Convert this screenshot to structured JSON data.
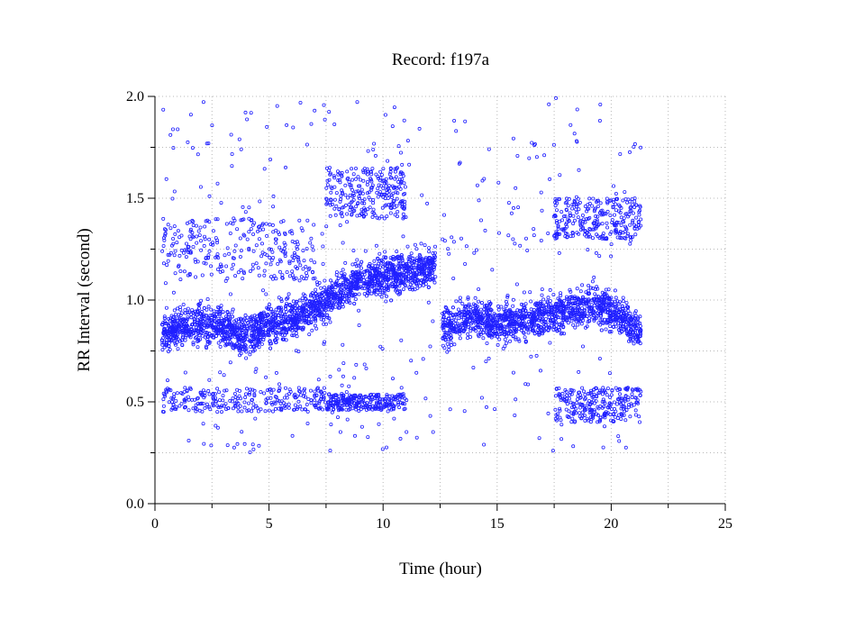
{
  "chart_data": {
    "type": "scatter",
    "title": "Record:  f197a",
    "xlabel": "Time (hour)",
    "ylabel": "RR Interval (second)",
    "xlim": [
      0,
      25
    ],
    "ylim": [
      0,
      2.0
    ],
    "x_ticks": [
      0,
      5,
      10,
      15,
      20,
      25
    ],
    "x_tick_labels": [
      "0",
      "5",
      "10",
      "15",
      "20",
      "25"
    ],
    "y_ticks": [
      0.0,
      0.5,
      1.0,
      1.5,
      2.0
    ],
    "y_tick_labels": [
      "0.0",
      "0.5",
      "1.0",
      "1.5",
      "2.0"
    ],
    "grid": true,
    "marker_color": "#2020ff",
    "marker": "open-circle",
    "data_extent_x": [
      0.3,
      21.3
    ],
    "series_trend": [
      {
        "x": 0.3,
        "y": 0.85
      },
      {
        "x": 1.0,
        "y": 0.86
      },
      {
        "x": 2.0,
        "y": 0.88
      },
      {
        "x": 3.0,
        "y": 0.87
      },
      {
        "x": 4.0,
        "y": 0.82
      },
      {
        "x": 5.0,
        "y": 0.88
      },
      {
        "x": 6.0,
        "y": 0.9
      },
      {
        "x": 7.0,
        "y": 0.96
      },
      {
        "x": 8.0,
        "y": 1.03
      },
      {
        "x": 9.0,
        "y": 1.1
      },
      {
        "x": 10.0,
        "y": 1.12
      },
      {
        "x": 11.0,
        "y": 1.14
      },
      {
        "x": 12.3,
        "y": 1.16
      },
      {
        "x": 12.6,
        "y": 0.86
      },
      {
        "x": 14.0,
        "y": 0.92
      },
      {
        "x": 15.0,
        "y": 0.88
      },
      {
        "x": 16.0,
        "y": 0.9
      },
      {
        "x": 17.0,
        "y": 0.92
      },
      {
        "x": 18.0,
        "y": 0.94
      },
      {
        "x": 19.0,
        "y": 0.98
      },
      {
        "x": 20.0,
        "y": 0.95
      },
      {
        "x": 21.3,
        "y": 0.85
      }
    ],
    "clusters": [
      {
        "x": [
          0.3,
          7.5
        ],
        "y": [
          0.45,
          0.57
        ]
      },
      {
        "x": [
          7.5,
          11.0
        ],
        "y": [
          0.46,
          0.54
        ]
      },
      {
        "x": [
          17.5,
          21.3
        ],
        "y": [
          0.4,
          0.57
        ]
      },
      {
        "x": [
          7.5,
          11.0
        ],
        "y": [
          1.4,
          1.65
        ]
      },
      {
        "x": [
          17.5,
          21.3
        ],
        "y": [
          1.3,
          1.5
        ]
      },
      {
        "x": [
          0.3,
          7.0
        ],
        "y": [
          1.1,
          1.4
        ]
      }
    ]
  }
}
